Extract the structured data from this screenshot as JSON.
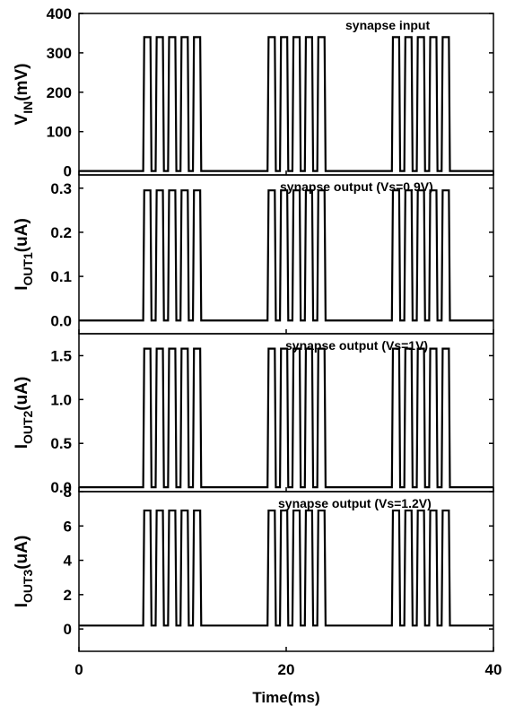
{
  "chart_data": {
    "type": "line",
    "x_axis": {
      "label": "Time(ms)",
      "lim": [
        0,
        40
      ],
      "ticks": [
        0,
        20,
        40
      ]
    },
    "shared_x_times_ms": [
      6.2,
      6.3,
      7.0,
      7.1,
      7.4,
      7.5,
      8.2,
      8.3,
      8.6,
      8.7,
      9.4,
      9.5,
      9.8,
      9.9,
      10.6,
      10.7,
      11.0,
      11.1,
      11.8,
      11.9,
      18.2,
      18.3,
      19.0,
      19.1,
      19.4,
      19.5,
      20.2,
      20.3,
      20.6,
      20.7,
      21.4,
      21.5,
      21.8,
      21.9,
      22.6,
      22.7,
      23.0,
      23.1,
      23.8,
      23.9,
      30.2,
      30.3,
      31.0,
      31.1,
      31.4,
      31.5,
      32.2,
      32.3,
      32.6,
      32.7,
      33.4,
      33.5,
      33.8,
      33.9,
      34.6,
      34.7,
      35.0,
      35.1,
      35.8,
      35.9
    ],
    "panels": [
      {
        "ylabel_main": "V",
        "ylabel_sub": "IN",
        "ylabel_unit": "(mV)",
        "annotation": "synapse input",
        "ylim": [
          -10,
          400
        ],
        "yticks": [
          0,
          100,
          200,
          300,
          400
        ],
        "baseline": 0,
        "high": 340,
        "bursts": [
          {
            "start": 6.2,
            "pulses": 5
          },
          {
            "start": 18.2,
            "pulses": 5
          },
          {
            "start": 30.2,
            "pulses": 5
          }
        ],
        "pulse_on_ms": 0.8,
        "pulse_off_ms": 0.4
      },
      {
        "ylabel_main": "I",
        "ylabel_sub": "OUT1",
        "ylabel_unit": "(uA)",
        "annotation": "synapse output (Vs=0.9V)",
        "ylim": [
          -0.03,
          0.33
        ],
        "yticks": [
          0.0,
          0.1,
          0.2,
          0.3
        ],
        "baseline": 0.0,
        "high": 0.295,
        "bursts": [
          {
            "start": 6.2,
            "pulses": 5
          },
          {
            "start": 18.2,
            "pulses": 5
          },
          {
            "start": 30.2,
            "pulses": 5
          }
        ],
        "pulse_on_ms": 0.8,
        "pulse_off_ms": 0.4
      },
      {
        "ylabel_main": "I",
        "ylabel_sub": "OUT2",
        "ylabel_unit": "(uA)",
        "annotation": "synapse output (Vs=1V)",
        "ylim": [
          -0.05,
          1.75
        ],
        "yticks": [
          0.0,
          0.5,
          1.0,
          1.5
        ],
        "baseline": 0.0,
        "high": 1.58,
        "bursts": [
          {
            "start": 6.2,
            "pulses": 5
          },
          {
            "start": 18.2,
            "pulses": 5
          },
          {
            "start": 30.2,
            "pulses": 5
          }
        ],
        "pulse_on_ms": 0.8,
        "pulse_off_ms": 0.4
      },
      {
        "ylabel_main": "I",
        "ylabel_sub": "OUT3",
        "ylabel_unit": "(uA)",
        "annotation": "synapse output (Vs=1.2V)",
        "ylim": [
          -1.3,
          8
        ],
        "yticks": [
          0,
          2,
          4,
          6,
          8
        ],
        "baseline": 0.2,
        "high": 6.9,
        "bursts": [
          {
            "start": 6.2,
            "pulses": 5
          },
          {
            "start": 18.2,
            "pulses": 5
          },
          {
            "start": 30.2,
            "pulses": 5
          }
        ],
        "pulse_on_ms": 0.8,
        "pulse_off_ms": 0.4
      }
    ]
  },
  "colors": {
    "trace": "#000000",
    "axis": "#000000",
    "background": "#ffffff"
  }
}
